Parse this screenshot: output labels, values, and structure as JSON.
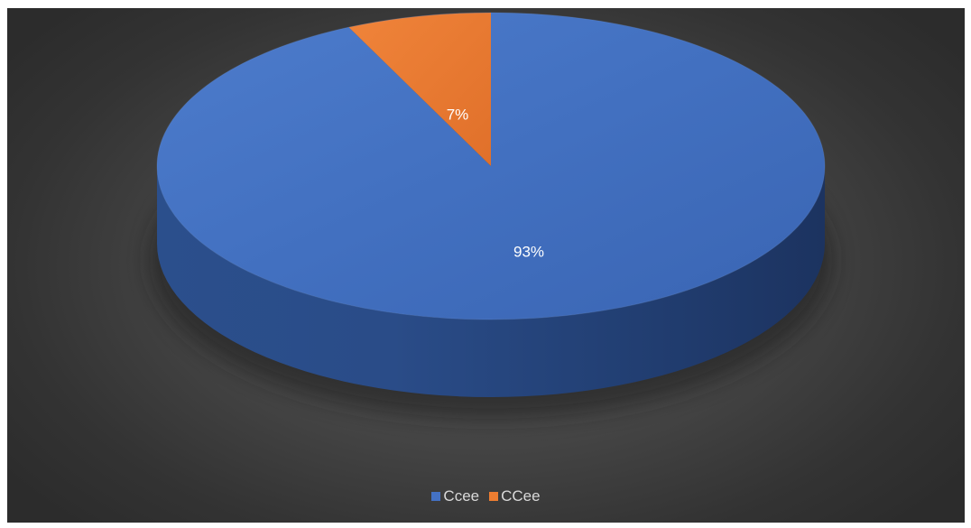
{
  "chart_data": {
    "type": "pie",
    "style": "3d",
    "categories": [
      "Ccee",
      "CCee"
    ],
    "values": [
      93,
      7
    ],
    "data_labels": [
      "93%",
      "7%"
    ],
    "colors": [
      "#4472c4",
      "#ed7d31"
    ],
    "legend": {
      "position": "bottom",
      "entries": [
        "Ccee",
        "CCee"
      ]
    },
    "background": "#404040"
  }
}
